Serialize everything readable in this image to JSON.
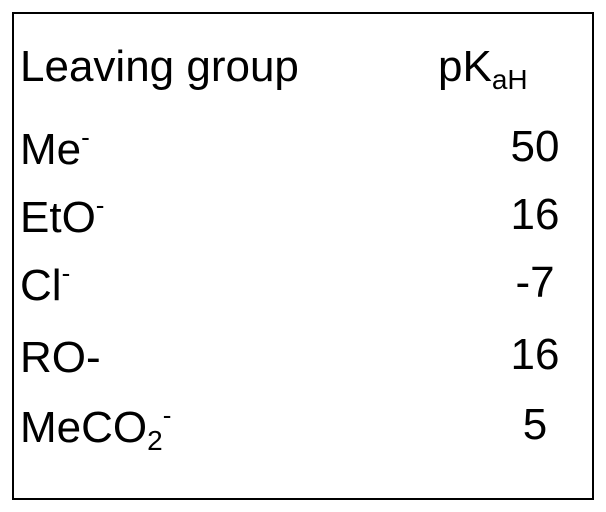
{
  "header": {
    "leaving_group": "Leaving group",
    "pka_main": "pK",
    "pka_sub": "aH"
  },
  "rows": [
    {
      "base": "Me",
      "sub": "",
      "sup": "-",
      "pka": "50"
    },
    {
      "base": "EtO",
      "sub": "",
      "sup": "-",
      "pka": "16"
    },
    {
      "base": "Cl",
      "sub": "",
      "sup": "-",
      "pka": "-7"
    },
    {
      "base": "RO-",
      "sub": "",
      "sup": "",
      "pka": "16"
    },
    {
      "base": "MeCO",
      "sub": "2",
      "sup": "-",
      "pka": "5"
    }
  ]
}
